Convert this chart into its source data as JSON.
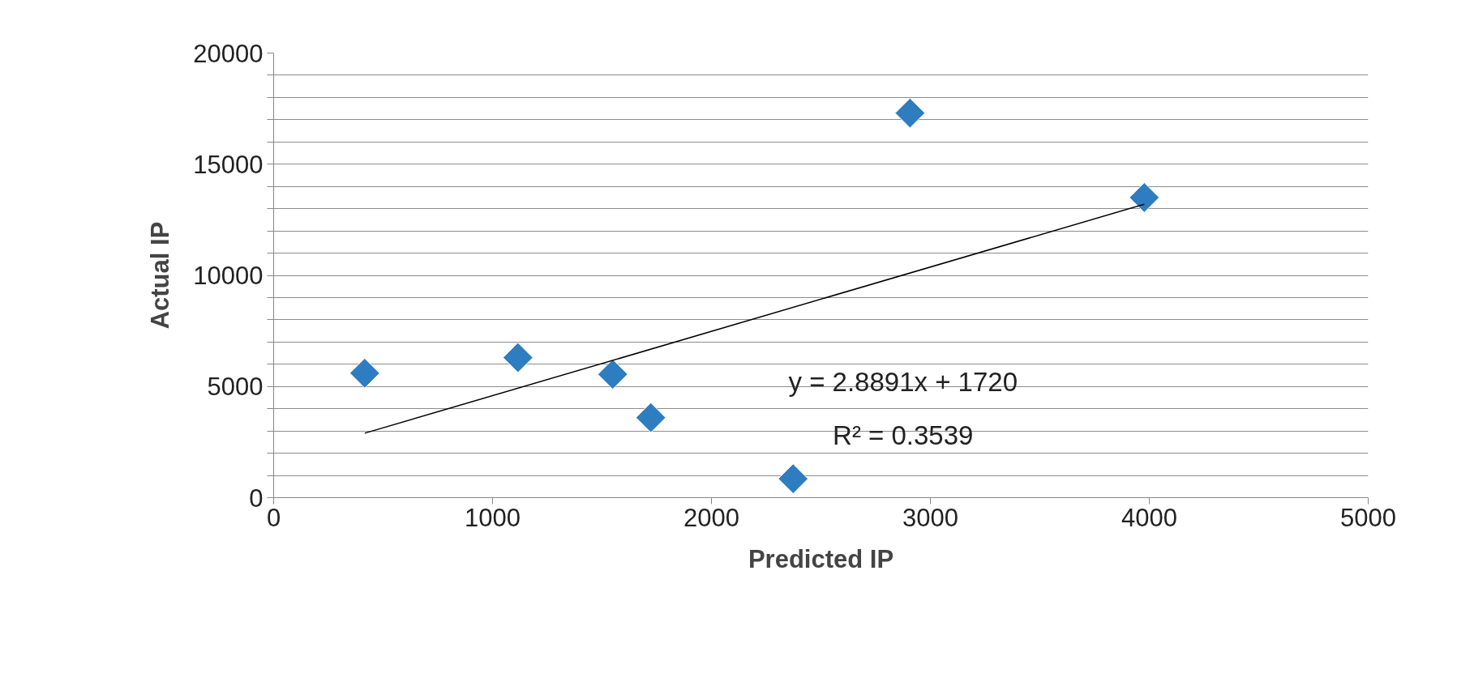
{
  "chart_data": {
    "type": "scatter",
    "xlabel": "Predicted IP",
    "ylabel": "Actual IP",
    "series": [
      {
        "color": "#2e7dc0",
        "marker": "diamond",
        "x": [
          416,
          1116,
          1549,
          1723,
          2373,
          2907,
          3977
        ],
        "values": [
          5600,
          6300,
          5550,
          3600,
          850,
          17300,
          13500
        ]
      },
      {
        "type": "line",
        "color": "#000000",
        "marker": "none",
        "x": [
          416,
          3977
        ],
        "values": [
          2900,
          13200
        ]
      }
    ],
    "annotations": [
      "y = 2.8891x + 1720",
      "R² = 0.3539"
    ],
    "xlim": [
      0,
      5000
    ],
    "xticks": [
      0,
      1000,
      2000,
      3000,
      4000,
      5000
    ],
    "ylim": [
      0,
      20000
    ],
    "yticks": [
      0,
      {
        "value": 1000,
        "label": null
      },
      {
        "value": 2000,
        "label": null
      },
      {
        "value": 3000,
        "label": null
      },
      {
        "value": 4000,
        "label": null
      },
      5000,
      {
        "value": 6000,
        "label": null
      },
      {
        "value": 7000,
        "label": null
      },
      {
        "value": 8000,
        "label": null
      },
      {
        "value": 9000,
        "label": null
      },
      10000,
      {
        "value": 11000,
        "label": null
      },
      {
        "value": 12000,
        "label": null
      },
      {
        "value": 13000,
        "label": null
      },
      {
        "value": 14000,
        "label": null
      },
      15000,
      {
        "value": 16000,
        "label": null
      },
      {
        "value": 17000,
        "label": null
      },
      {
        "value": 18000,
        "label": null
      },
      {
        "value": 19000,
        "label": null
      },
      20000
    ],
    "grid": "y"
  }
}
